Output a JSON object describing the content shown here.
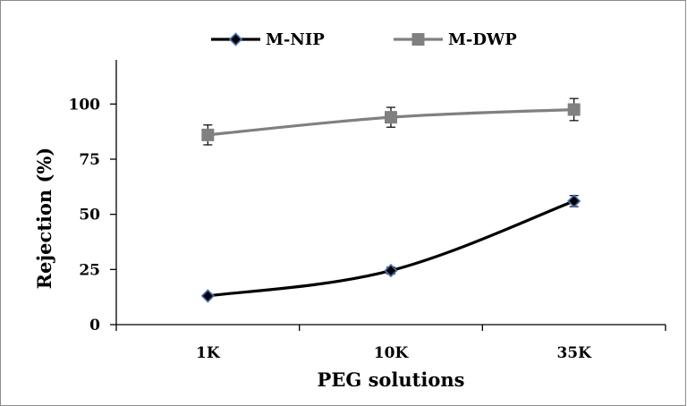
{
  "chart_data": {
    "type": "line",
    "title": "",
    "xlabel": "PEG solutions",
    "ylabel": "Rejection (%)",
    "categories": [
      "1K",
      "10K",
      "35K"
    ],
    "ylim": [
      0,
      120
    ],
    "yticks": [
      0,
      25,
      50,
      75,
      100
    ],
    "ytick_labels": [
      "0",
      "25",
      "50",
      "75",
      "100"
    ],
    "grid": false,
    "legend_position": "top-center",
    "series": [
      {
        "name": "M-NIP",
        "values": [
          13.0,
          24.5,
          56.0
        ],
        "errors": [
          0.8,
          1.5,
          2.5
        ],
        "color": "#000000",
        "marker": "diamond",
        "marker_fill": "#000000",
        "marker_edge": "#4a6fb5"
      },
      {
        "name": "M-DWP",
        "values": [
          86.0,
          94.0,
          97.5
        ],
        "errors": [
          4.5,
          4.5,
          5.0
        ],
        "color": "#808080",
        "marker": "square",
        "marker_fill": "#808080",
        "marker_edge": "#808080"
      }
    ]
  }
}
